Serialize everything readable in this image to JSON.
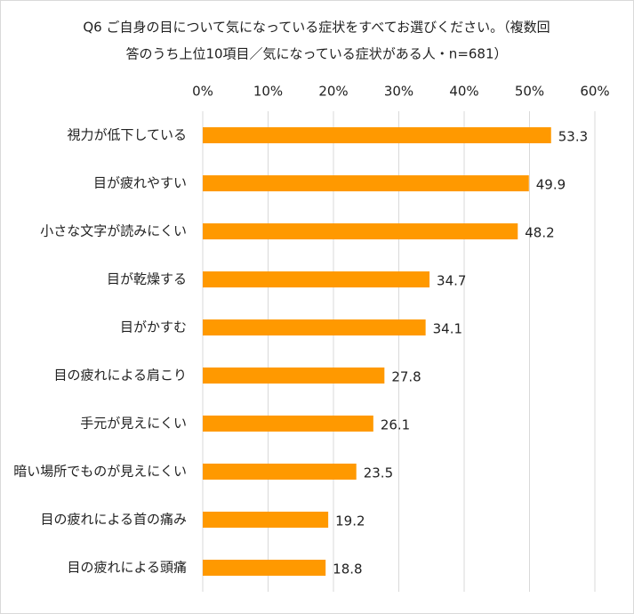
{
  "chart_data": {
    "type": "bar",
    "orientation": "horizontal",
    "title": [
      "Q6 ご自身の目について気になっている症状をすべてお選びください。（複数回",
      "答のうち上位10項目／気になっている症状がある人・n=681）"
    ],
    "categories": [
      "視力が低下している",
      "目が疲れやすい",
      "小さな文字が読みにくい",
      "目が乾燥する",
      "目がかすむ",
      "目の疲れによる肩こり",
      "手元が見えにくい",
      "暗い場所でものが見えにくい",
      "目の疲れによる首の痛み",
      "目の疲れによる頭痛"
    ],
    "values": [
      53.3,
      49.9,
      48.2,
      34.7,
      34.1,
      27.8,
      26.1,
      23.5,
      19.2,
      18.8
    ],
    "color": "#ff9900",
    "xlim": [
      0,
      60
    ],
    "xticks": [
      {
        "value": 0,
        "label": "0%"
      },
      {
        "value": 10,
        "label": "10%"
      },
      {
        "value": 20,
        "label": "20%"
      },
      {
        "value": 30,
        "label": "30%"
      },
      {
        "value": 40,
        "label": "40%"
      },
      {
        "value": 50,
        "label": "50%"
      },
      {
        "value": 60,
        "label": "60%"
      }
    ],
    "grid": true
  }
}
